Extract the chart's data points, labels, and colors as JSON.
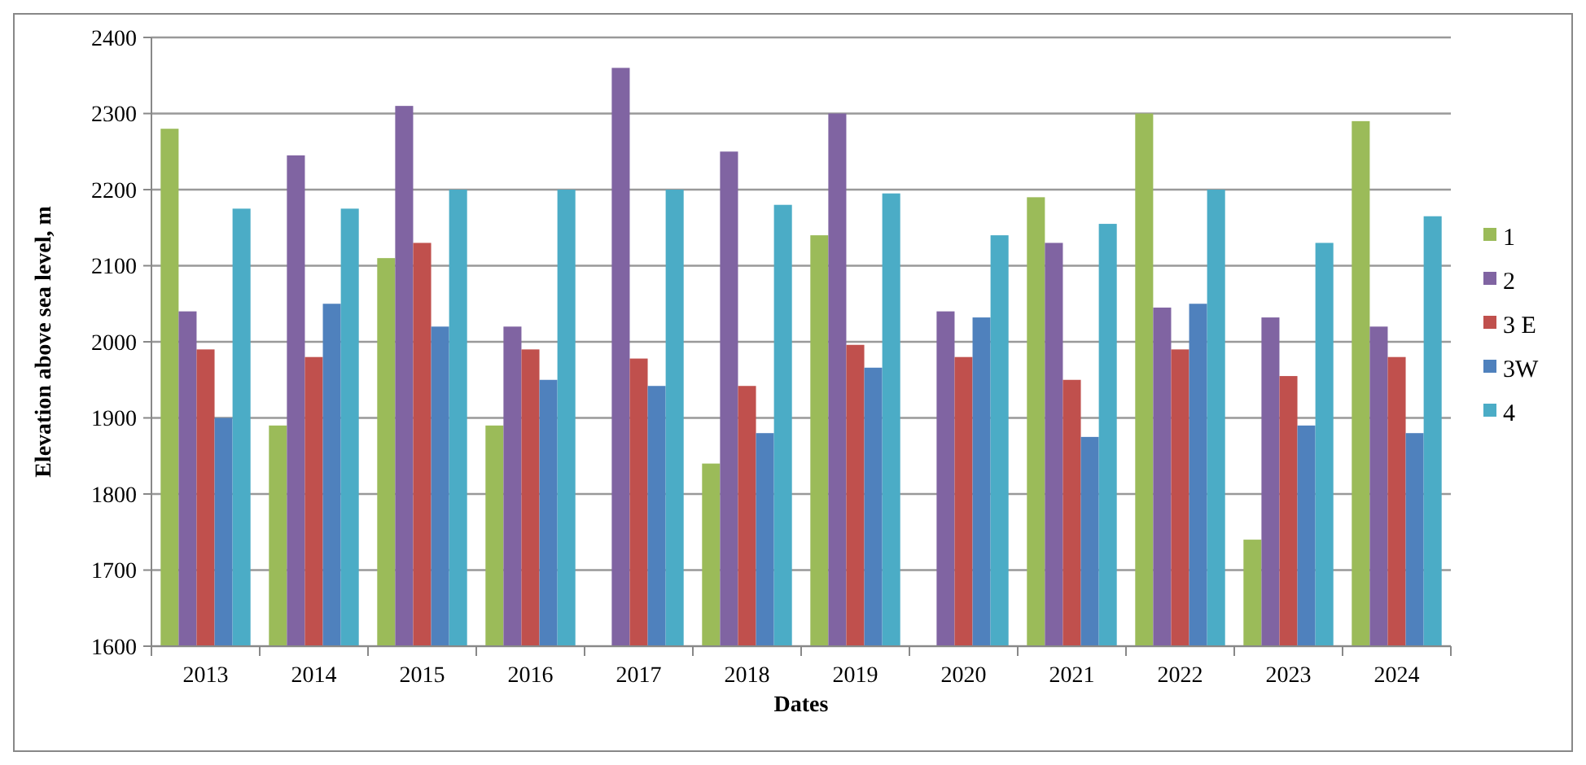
{
  "chart_data": {
    "type": "bar",
    "xlabel": "Dates",
    "ylabel": "Elevation above sea level, m",
    "categories": [
      "2013",
      "2014",
      "2015",
      "2016",
      "2017",
      "2018",
      "2019",
      "2020",
      "2021",
      "2022",
      "2023",
      "2024"
    ],
    "series": [
      {
        "name": "1",
        "color": "#9bbb59",
        "values": [
          2280,
          1890,
          2110,
          1890,
          null,
          1840,
          2140,
          null,
          2190,
          2300,
          1740,
          2290
        ]
      },
      {
        "name": "2",
        "color": "#8064a2",
        "values": [
          2040,
          2245,
          2310,
          2020,
          2360,
          2250,
          2300,
          2040,
          2130,
          2045,
          2032,
          2020
        ]
      },
      {
        "name": "3 E",
        "color": "#c0504d",
        "values": [
          1990,
          1980,
          2130,
          1990,
          1978,
          1942,
          1996,
          1980,
          1950,
          1990,
          1955,
          1980
        ]
      },
      {
        "name": "3W",
        "color": "#4f81bd",
        "values": [
          1900,
          2050,
          2020,
          1950,
          1942,
          1880,
          1966,
          2032,
          1875,
          2050,
          1890,
          1880
        ]
      },
      {
        "name": "4",
        "color": "#4bacc6",
        "values": [
          2175,
          2175,
          2200,
          2200,
          2200,
          2180,
          2195,
          2140,
          2155,
          2200,
          2130,
          2165
        ]
      }
    ],
    "ylim": [
      1600,
      2400
    ],
    "yticks": [
      1600,
      1700,
      1800,
      1900,
      2000,
      2100,
      2200,
      2300,
      2400
    ],
    "grid": "y",
    "legend": "right"
  }
}
